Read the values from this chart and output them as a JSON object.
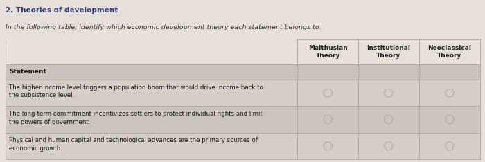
{
  "title": "2. Theories of development",
  "subtitle": "In the following table, identify which economic development theory each statement belongs to.",
  "title_color": "#2e4080",
  "subtitle_color": "#333333",
  "bg_color": "#e6e0d8",
  "table_bg_odd": "#d4cec6",
  "table_bg_even": "#ccc6be",
  "header_row_bg": "#c8c2ba",
  "col_header": [
    "Malthusian\nTheory",
    "Institutional\nTheory",
    "Neoclassical\nTheory"
  ],
  "row_header": "Statement",
  "rows": [
    "The higher income level triggers a population boom that would drive income back to\nthe subsistence level.",
    "The long-term commitment incentivizes settlers to protect individual rights and limit\nthe powers of government.",
    "Physical and human capital and technological advances are the primary sources of\neconomic growth."
  ],
  "circle_edge_color": "#b0aa9f",
  "border_color": "#aaa49c",
  "title_fontsize": 7.5,
  "subtitle_fontsize": 6.8,
  "cell_fontsize": 6.2,
  "header_fontsize": 6.5,
  "col_header_fontsize": 6.5
}
